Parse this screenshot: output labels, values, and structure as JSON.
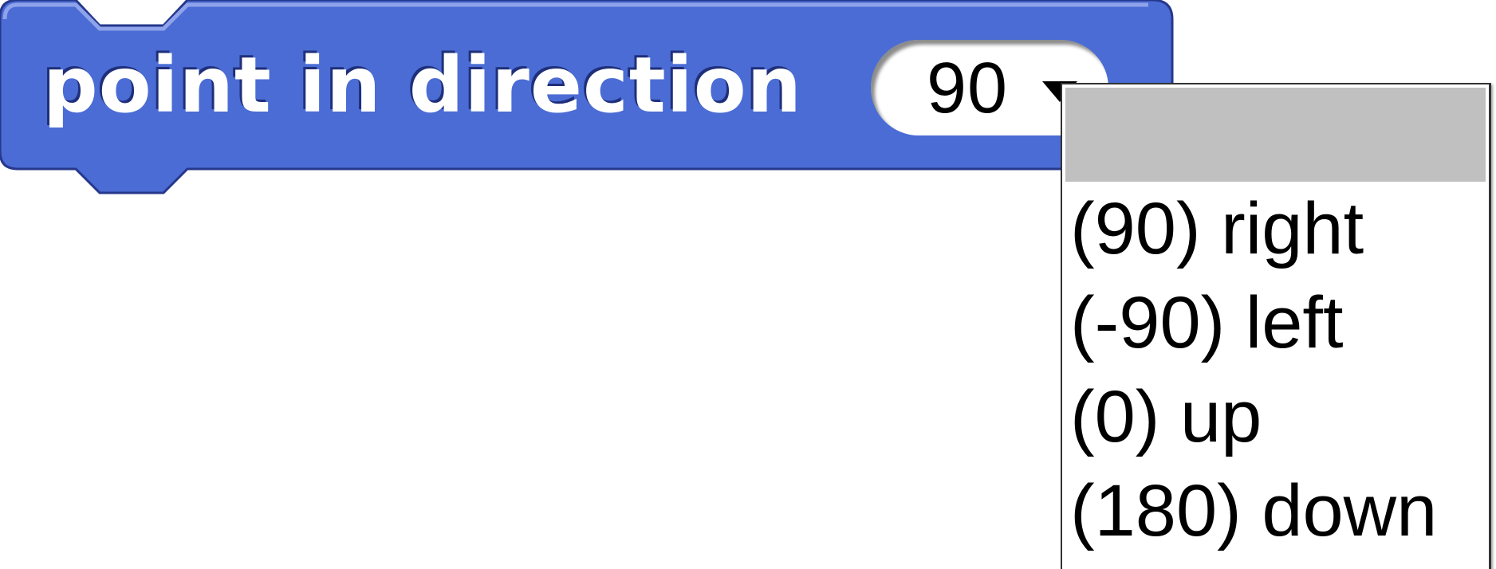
{
  "block": {
    "label": "point in direction",
    "color": "#4a6cd4",
    "value": "90"
  },
  "dropdown": {
    "highlight_color": "#c0c0c0",
    "items": [
      {
        "label": ""
      },
      {
        "label": "(90) right"
      },
      {
        "label": "(-90) left"
      },
      {
        "label": "(0) up"
      },
      {
        "label": "(180) down"
      }
    ]
  }
}
